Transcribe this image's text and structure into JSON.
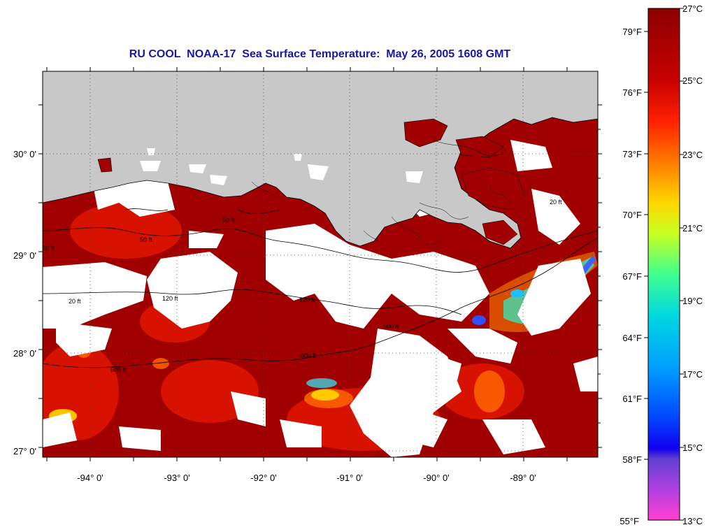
{
  "title": "RU COOL  NOAA-17  Sea Surface Temperature:  May 26, 2005 1608 GMT",
  "map": {
    "longitude_labels": [
      "-94° 0'",
      "-93° 0'",
      "-92° 0'",
      "-91° 0'",
      "-90° 0'",
      "-89° 0'"
    ],
    "latitude_labels": [
      "30° 0'",
      "29° 0'",
      "28° 0'",
      "27° 0'"
    ],
    "contour_labels": [
      "50 ft",
      "20 ft",
      "120 ft",
      "600 ft",
      "60 ft",
      "600 ft",
      "120 ft",
      "600 ft",
      "50 ft",
      "20 ft"
    ],
    "gridlines": "dotted",
    "colors": {
      "land": "#c8c8c8",
      "cloud": "#ffffff",
      "frame": "#000000",
      "title": "#1717a8"
    }
  },
  "colorbar": {
    "celsius_labels": [
      "27°C",
      "25°C",
      "23°C",
      "21°C",
      "19°C",
      "17°C",
      "15°C",
      "13°C"
    ],
    "fahrenheit_labels": [
      "79°F",
      "76°F",
      "73°F",
      "70°F",
      "67°F",
      "64°F",
      "61°F",
      "58°F",
      "55°F"
    ],
    "range_celsius": [
      13,
      27
    ],
    "stops": [
      "#8b0000",
      "#d40000",
      "#ff3a00",
      "#ff8a00",
      "#ffe000",
      "#9cff40",
      "#00e0c0",
      "#00a8ff",
      "#0020ff",
      "#7040d0",
      "#c040e0",
      "#ff40d0"
    ]
  }
}
